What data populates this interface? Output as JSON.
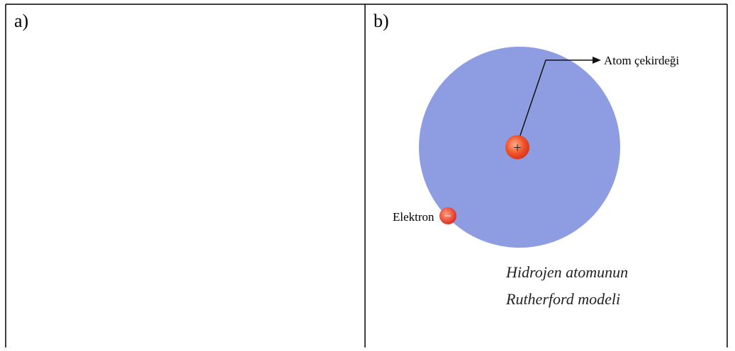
{
  "table": {
    "cells": [
      {
        "label": "a)"
      },
      {
        "label": "b)",
        "diagram": {
          "nucleus_sign": "+",
          "nucleus_label": "Atom çekirdeği",
          "electron_sign": "−",
          "electron_label": "Elektron",
          "caption": [
            "Hidrojen atomunun",
            "Rutherford modeli"
          ]
        }
      }
    ]
  }
}
